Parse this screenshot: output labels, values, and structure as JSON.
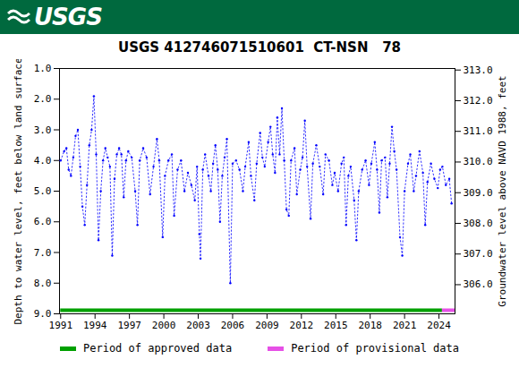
{
  "banner": "USGS",
  "chart_data": {
    "type": "line",
    "title": "USGS 412746071510601  CT-NSN   78",
    "y_label": "Depth to water level, feet below land surface",
    "y2_label": "Groundwater level above NAVD 1988, feet",
    "color": "#0000ff",
    "marker": "dot",
    "line_style": "dotted",
    "grid": false,
    "x": [
      1991.0,
      1991.3,
      1991.5,
      1991.7,
      1991.9,
      1992.1,
      1992.3,
      1992.5,
      1992.7,
      1992.9,
      1993.1,
      1993.3,
      1993.5,
      1993.7,
      1993.9,
      1994.1,
      1994.3,
      1994.5,
      1994.7,
      1994.9,
      1995.1,
      1995.3,
      1995.5,
      1995.7,
      1995.9,
      1996.1,
      1996.3,
      1996.5,
      1996.7,
      1996.9,
      1997.2,
      1997.5,
      1997.7,
      1997.9,
      1998.2,
      1998.5,
      1998.8,
      1999.1,
      1999.4,
      1999.6,
      1999.9,
      2000.1,
      2000.4,
      2000.7,
      2000.9,
      2001.2,
      2001.5,
      2001.8,
      2002.1,
      2002.4,
      2002.7,
      2002.9,
      2003.1,
      2003.2,
      2003.4,
      2003.6,
      2003.9,
      2004.1,
      2004.3,
      2004.5,
      2004.7,
      2004.9,
      2005.1,
      2005.3,
      2005.5,
      2005.8,
      2006.0,
      2006.3,
      2006.6,
      2006.9,
      2007.1,
      2007.4,
      2007.6,
      2007.9,
      2008.1,
      2008.4,
      2008.6,
      2008.8,
      2009.1,
      2009.3,
      2009.5,
      2009.7,
      2009.9,
      2010.1,
      2010.3,
      2010.5,
      2010.7,
      2010.9,
      2011.1,
      2011.4,
      2011.6,
      2011.9,
      2012.1,
      2012.3,
      2012.5,
      2012.8,
      2013.0,
      2013.3,
      2013.6,
      2013.9,
      2014.1,
      2014.4,
      2014.7,
      2014.9,
      2015.2,
      2015.5,
      2015.7,
      2015.9,
      2016.1,
      2016.3,
      2016.6,
      2016.8,
      2017.0,
      2017.3,
      2017.6,
      2017.9,
      2018.1,
      2018.4,
      2018.6,
      2018.8,
      2019.0,
      2019.3,
      2019.5,
      2019.7,
      2019.9,
      2020.1,
      2020.3,
      2020.6,
      2020.8,
      2021.0,
      2021.3,
      2021.5,
      2021.8,
      2022.0,
      2022.3,
      2022.6,
      2022.8,
      2023.0,
      2023.3,
      2023.6,
      2023.9,
      2024.1,
      2024.3,
      2024.6,
      2024.9,
      2025.1
    ],
    "values": [
      4.0,
      3.7,
      3.6,
      4.3,
      4.5,
      3.9,
      3.2,
      3.0,
      4.2,
      5.5,
      6.1,
      4.8,
      3.5,
      3.0,
      1.9,
      3.8,
      6.6,
      5.0,
      4.0,
      3.6,
      3.9,
      4.2,
      7.1,
      4.6,
      3.8,
      3.6,
      3.8,
      5.2,
      4.0,
      3.7,
      3.9,
      5.0,
      6.1,
      4.0,
      3.6,
      3.9,
      5.1,
      4.2,
      3.3,
      4.0,
      6.5,
      4.5,
      4.0,
      3.8,
      5.8,
      4.3,
      4.0,
      5.0,
      4.4,
      4.8,
      5.3,
      4.2,
      6.4,
      7.2,
      4.3,
      3.8,
      4.5,
      5.0,
      4.1,
      3.5,
      4.3,
      6.0,
      4.5,
      3.9,
      3.3,
      8.0,
      4.1,
      4.0,
      4.3,
      5.0,
      4.2,
      3.4,
      4.5,
      5.3,
      4.1,
      3.1,
      3.9,
      4.2,
      3.4,
      2.9,
      3.8,
      4.4,
      2.6,
      3.8,
      2.3,
      4.0,
      5.6,
      5.8,
      4.0,
      3.6,
      5.1,
      4.3,
      3.9,
      2.7,
      4.2,
      5.9,
      4.1,
      3.5,
      4.2,
      5.1,
      3.8,
      4.0,
      4.8,
      4.4,
      5.0,
      4.1,
      3.9,
      6.1,
      4.5,
      4.2,
      5.3,
      6.6,
      5.0,
      4.3,
      4.0,
      4.8,
      4.1,
      3.4,
      4.3,
      5.7,
      4.0,
      3.9,
      5.2,
      4.1,
      2.9,
      3.7,
      4.3,
      6.5,
      7.1,
      5.0,
      4.1,
      3.8,
      5.0,
      4.5,
      3.7,
      4.4,
      6.1,
      4.7,
      4.1,
      4.6,
      4.9,
      4.3,
      4.2,
      4.8,
      4.6,
      5.4
    ],
    "xlim": [
      1990.9,
      2025.4
    ],
    "xticks": [
      1991,
      1994,
      1997,
      2000,
      2003,
      2006,
      2009,
      2012,
      2015,
      2018,
      2021,
      2024
    ],
    "ylim": [
      1,
      9
    ],
    "yticks": [
      {
        "value": 1,
        "label": "1.0"
      },
      {
        "value": 2,
        "label": "2.0"
      },
      {
        "value": 3,
        "label": "3.0"
      },
      {
        "value": 4,
        "label": "4.0"
      },
      {
        "value": 5,
        "label": "5.0"
      },
      {
        "value": 6,
        "label": "6.0"
      },
      {
        "value": 7,
        "label": "7.0"
      },
      {
        "value": 8,
        "label": "8.0"
      },
      {
        "value": 9,
        "label": "9.0"
      }
    ],
    "y2lim": [
      313.05,
      305.05
    ],
    "y2ticks": [
      {
        "value": 306,
        "label": "306.0"
      },
      {
        "value": 307,
        "label": "307.0"
      },
      {
        "value": 308,
        "label": "308.0"
      },
      {
        "value": 309,
        "label": "309.0"
      },
      {
        "value": 310,
        "label": "310.0"
      },
      {
        "value": 311,
        "label": "311.0"
      },
      {
        "value": 312,
        "label": "312.0"
      },
      {
        "value": 313,
        "label": "313.0"
      }
    ],
    "periods": [
      {
        "name": "Period of approved data",
        "color": "#00a000",
        "start": 1991.0,
        "end": 2024.3
      },
      {
        "name": "Period of provisional data",
        "color": "#e650e6",
        "start": 2024.3,
        "end": 2025.4
      }
    ]
  }
}
